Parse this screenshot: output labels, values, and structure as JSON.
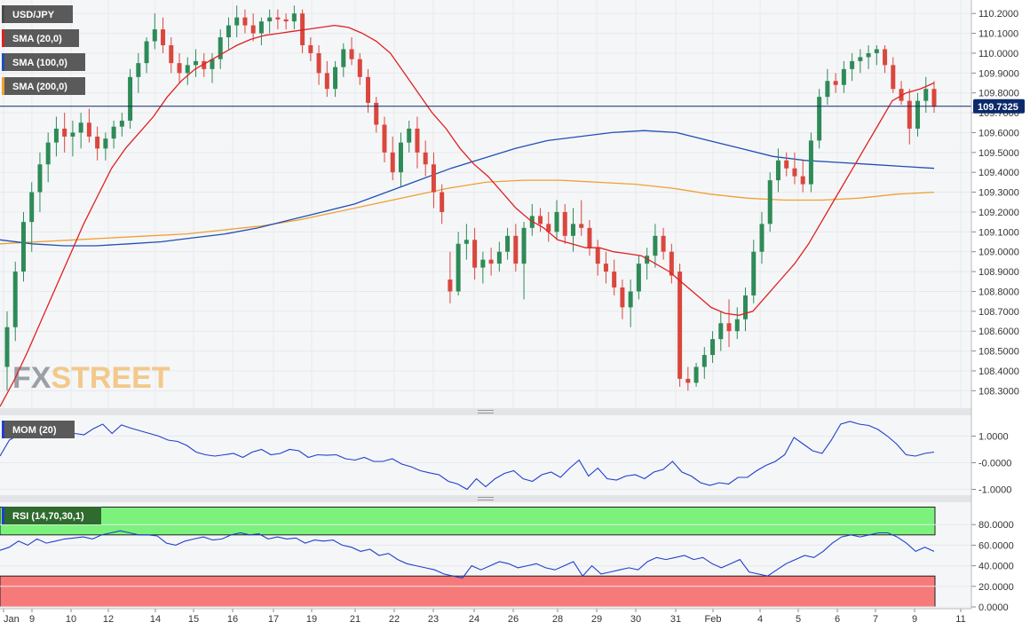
{
  "colors": {
    "up": "#2e8b57",
    "down": "#d9473d",
    "sma20": "#e02020",
    "sma100": "#1f4fb5",
    "sma200": "#f0a030",
    "mom": "#1f3fcc",
    "rsi": "#1f3fcc",
    "rsi_overbought": "#7cf27c",
    "rsi_oversold": "#f77a7a",
    "last_price_badge": "#0d2a6b"
  },
  "watermark": {
    "fx": "FX",
    "street": "STREET"
  },
  "chart_data": [
    {
      "type": "candlestick",
      "symbol": "USD/JPY",
      "legend": [
        "USD/JPY",
        "SMA (20,0)",
        "SMA (100,0)",
        "SMA (200,0)"
      ],
      "last_price": "109.7325",
      "y_ticks": [
        "110.2000",
        "110.1000",
        "110.0000",
        "109.9000",
        "109.8000",
        "109.7000",
        "109.6000",
        "109.5000",
        "109.4000",
        "109.3000",
        "109.2000",
        "109.1000",
        "109.0000",
        "108.9000",
        "108.8000",
        "108.7000",
        "108.6000",
        "108.5000",
        "108.4000",
        "108.3000"
      ],
      "ylim": [
        108.23,
        110.25
      ],
      "x_ticks": [
        "Jan",
        "9",
        "10",
        "12",
        "14",
        "15",
        "16",
        "17",
        "19",
        "21",
        "22",
        "23",
        "24",
        "26",
        "28",
        "29",
        "30",
        "31",
        "Feb",
        "4",
        "5",
        "6",
        "7",
        "9",
        "11"
      ],
      "candles": [
        [
          108.42,
          108.7,
          108.3,
          108.62
        ],
        [
          108.62,
          108.95,
          108.55,
          108.9
        ],
        [
          108.9,
          109.2,
          108.85,
          109.15
        ],
        [
          109.15,
          109.35,
          109.0,
          109.3
        ],
        [
          109.3,
          109.5,
          109.2,
          109.44
        ],
        [
          109.44,
          109.6,
          109.35,
          109.55
        ],
        [
          109.55,
          109.68,
          109.48,
          109.62
        ],
        [
          109.62,
          109.7,
          109.5,
          109.58
        ],
        [
          109.58,
          109.66,
          109.48,
          109.6
        ],
        [
          109.6,
          109.7,
          109.52,
          109.65
        ],
        [
          109.65,
          109.72,
          109.55,
          109.58
        ],
        [
          109.58,
          109.63,
          109.46,
          109.52
        ],
        [
          109.52,
          109.6,
          109.46,
          109.57
        ],
        [
          109.57,
          109.66,
          109.52,
          109.63
        ],
        [
          109.63,
          109.7,
          109.58,
          109.66
        ],
        [
          109.66,
          109.92,
          109.62,
          109.88
        ],
        [
          109.88,
          110.0,
          109.8,
          109.95
        ],
        [
          109.95,
          110.08,
          109.9,
          110.06
        ],
        [
          110.06,
          110.2,
          110.02,
          110.12
        ],
        [
          110.12,
          110.18,
          110.0,
          110.04
        ],
        [
          110.04,
          110.08,
          109.9,
          109.95
        ],
        [
          109.95,
          110.0,
          109.85,
          109.9
        ],
        [
          109.9,
          109.98,
          109.84,
          109.94
        ],
        [
          109.94,
          110.02,
          109.88,
          109.96
        ],
        [
          109.96,
          110.0,
          109.88,
          109.92
        ],
        [
          109.92,
          110.0,
          109.85,
          109.97
        ],
        [
          109.97,
          110.12,
          109.92,
          110.08
        ],
        [
          110.08,
          110.18,
          110.02,
          110.14
        ],
        [
          110.14,
          110.24,
          110.08,
          110.18
        ],
        [
          110.18,
          110.22,
          110.1,
          110.14
        ],
        [
          110.14,
          110.2,
          110.06,
          110.1
        ],
        [
          110.1,
          110.18,
          110.04,
          110.16
        ],
        [
          110.16,
          110.22,
          110.1,
          110.18
        ],
        [
          110.18,
          110.22,
          110.12,
          110.17
        ],
        [
          110.17,
          110.2,
          110.12,
          110.16
        ],
        [
          110.16,
          110.24,
          110.12,
          110.2
        ],
        [
          110.2,
          110.22,
          110.0,
          110.04
        ],
        [
          110.04,
          110.08,
          109.96,
          110.0
        ],
        [
          110.0,
          110.04,
          109.84,
          109.9
        ],
        [
          109.9,
          109.96,
          109.78,
          109.82
        ],
        [
          109.82,
          109.96,
          109.78,
          109.93
        ],
        [
          109.93,
          110.05,
          109.88,
          110.02
        ],
        [
          110.02,
          110.08,
          109.94,
          109.97
        ],
        [
          109.97,
          110.0,
          109.84,
          109.88
        ],
        [
          109.88,
          109.92,
          109.7,
          109.75
        ],
        [
          109.75,
          109.78,
          109.6,
          109.64
        ],
        [
          109.64,
          109.68,
          109.45,
          109.5
        ],
        [
          109.5,
          109.58,
          109.36,
          109.4
        ],
        [
          109.4,
          109.6,
          109.33,
          109.55
        ],
        [
          109.55,
          109.66,
          109.5,
          109.62
        ],
        [
          109.62,
          109.68,
          109.42,
          109.5
        ],
        [
          109.5,
          109.56,
          109.38,
          109.44
        ],
        [
          109.44,
          109.5,
          109.22,
          109.3
        ],
        [
          109.3,
          109.34,
          109.14,
          109.2
        ],
        [
          108.86,
          109.0,
          108.74,
          108.8
        ],
        [
          108.8,
          109.1,
          108.78,
          109.04
        ],
        [
          109.04,
          109.14,
          108.96,
          109.06
        ],
        [
          109.06,
          109.12,
          108.86,
          108.92
        ],
        [
          108.92,
          109.0,
          108.84,
          108.96
        ],
        [
          108.96,
          109.02,
          108.88,
          108.94
        ],
        [
          108.94,
          109.05,
          108.9,
          109.0
        ],
        [
          109.0,
          109.12,
          108.96,
          109.08
        ],
        [
          109.08,
          109.14,
          108.9,
          108.94
        ],
        [
          108.94,
          109.15,
          108.76,
          109.12
        ],
        [
          109.12,
          109.24,
          109.08,
          109.18
        ],
        [
          109.18,
          109.22,
          109.1,
          109.14
        ],
        [
          109.14,
          109.2,
          109.05,
          109.1
        ],
        [
          109.1,
          109.26,
          109.06,
          109.2
        ],
        [
          109.2,
          109.24,
          109.04,
          109.08
        ],
        [
          109.08,
          109.22,
          109.0,
          109.14
        ],
        [
          109.14,
          109.26,
          109.08,
          109.12
        ],
        [
          109.12,
          109.16,
          108.98,
          109.02
        ],
        [
          109.02,
          109.06,
          108.88,
          108.94
        ],
        [
          108.94,
          109.0,
          108.84,
          108.9
        ],
        [
          108.9,
          108.96,
          108.78,
          108.82
        ],
        [
          108.82,
          108.86,
          108.66,
          108.72
        ],
        [
          108.72,
          108.86,
          108.62,
          108.8
        ],
        [
          108.8,
          108.98,
          108.76,
          108.94
        ],
        [
          108.94,
          109.02,
          108.86,
          108.98
        ],
        [
          108.98,
          109.14,
          108.92,
          109.08
        ],
        [
          109.08,
          109.12,
          108.96,
          109.0
        ],
        [
          109.0,
          109.04,
          108.84,
          108.88
        ],
        [
          108.9,
          108.94,
          108.32,
          108.36
        ],
        [
          108.36,
          108.42,
          108.3,
          108.34
        ],
        [
          108.34,
          108.44,
          108.32,
          108.42
        ],
        [
          108.42,
          108.52,
          108.36,
          108.48
        ],
        [
          108.48,
          108.6,
          108.44,
          108.56
        ],
        [
          108.56,
          108.7,
          108.5,
          108.64
        ],
        [
          108.64,
          108.76,
          108.52,
          108.6
        ],
        [
          108.6,
          108.72,
          108.56,
          108.66
        ],
        [
          108.66,
          108.82,
          108.6,
          108.78
        ],
        [
          108.78,
          109.06,
          108.74,
          109.0
        ],
        [
          109.0,
          109.2,
          108.94,
          109.14
        ],
        [
          109.14,
          109.4,
          109.1,
          109.36
        ],
        [
          109.36,
          109.52,
          109.3,
          109.46
        ],
        [
          109.46,
          109.5,
          109.38,
          109.42
        ],
        [
          109.42,
          109.5,
          109.34,
          109.38
        ],
        [
          109.38,
          109.46,
          109.3,
          109.34
        ],
        [
          109.34,
          109.6,
          109.3,
          109.56
        ],
        [
          109.56,
          109.82,
          109.52,
          109.78
        ],
        [
          109.78,
          109.92,
          109.74,
          109.86
        ],
        [
          109.86,
          109.9,
          109.8,
          109.84
        ],
        [
          109.84,
          109.96,
          109.8,
          109.92
        ],
        [
          109.92,
          110.0,
          109.86,
          109.96
        ],
        [
          109.96,
          110.02,
          109.9,
          109.98
        ],
        [
          109.98,
          110.04,
          109.92,
          110.0
        ],
        [
          110.0,
          110.04,
          109.94,
          110.02
        ],
        [
          110.02,
          110.04,
          109.9,
          109.94
        ],
        [
          109.94,
          109.98,
          109.8,
          109.82
        ],
        [
          109.82,
          109.86,
          109.74,
          109.76
        ],
        [
          109.76,
          109.82,
          109.54,
          109.62
        ],
        [
          109.62,
          109.8,
          109.58,
          109.76
        ],
        [
          109.76,
          109.88,
          109.7,
          109.82
        ],
        [
          109.82,
          109.86,
          109.7,
          109.73
        ]
      ],
      "sma20": [
        108.22,
        108.35,
        108.5,
        108.66,
        108.82,
        108.98,
        109.14,
        109.28,
        109.42,
        109.52,
        109.6,
        109.68,
        109.78,
        109.86,
        109.92,
        109.96,
        110.0,
        110.04,
        110.07,
        110.09,
        110.1,
        110.11,
        110.12,
        110.13,
        110.14,
        110.13,
        110.1,
        110.06,
        110.0,
        109.9,
        109.8,
        109.7,
        109.62,
        109.52,
        109.44,
        109.38,
        109.3,
        109.22,
        109.16,
        109.12,
        109.06,
        109.04,
        109.02,
        109.02,
        109.0,
        108.99,
        108.98,
        108.94,
        108.9,
        108.84,
        108.78,
        108.72,
        108.69,
        108.68,
        108.7,
        108.78,
        108.86,
        108.94,
        109.04,
        109.16,
        109.28,
        109.4,
        109.52,
        109.64,
        109.76,
        109.8,
        109.82,
        109.85
      ],
      "sma100": [
        109.06,
        109.04,
        109.03,
        109.03,
        109.04,
        109.05,
        109.07,
        109.09,
        109.12,
        109.16,
        109.2,
        109.24,
        109.3,
        109.36,
        109.42,
        109.47,
        109.52,
        109.56,
        109.58,
        109.6,
        109.61,
        109.6,
        109.56,
        109.52,
        109.48,
        109.46,
        109.45,
        109.44,
        109.43,
        109.42
      ],
      "sma200": [
        109.04,
        109.05,
        109.06,
        109.07,
        109.08,
        109.09,
        109.11,
        109.13,
        109.16,
        109.2,
        109.24,
        109.28,
        109.32,
        109.35,
        109.36,
        109.36,
        109.35,
        109.34,
        109.32,
        109.29,
        109.27,
        109.26,
        109.26,
        109.27,
        109.29,
        109.3
      ]
    },
    {
      "type": "line",
      "legend": "MOM (20)",
      "y_ticks": [
        "1.0000",
        "-0.0000",
        "-1.0000"
      ],
      "ylim": [
        -1.15,
        1.65
      ],
      "values": [
        0.25,
        0.85,
        1.05,
        1.25,
        1.15,
        1.12,
        1.2,
        1.22,
        1.1,
        1.05,
        1.28,
        1.45,
        1.1,
        1.42,
        1.3,
        1.2,
        1.1,
        1.0,
        0.85,
        0.8,
        0.65,
        0.4,
        0.3,
        0.25,
        0.3,
        0.35,
        0.2,
        0.4,
        0.5,
        0.3,
        0.35,
        0.5,
        0.45,
        0.2,
        0.3,
        0.28,
        0.3,
        0.15,
        0.1,
        0.2,
        0.05,
        0.05,
        0.15,
        -0.05,
        -0.15,
        -0.3,
        -0.38,
        -0.45,
        -0.7,
        -0.8,
        -1.0,
        -0.6,
        -0.9,
        -0.6,
        -0.4,
        -0.3,
        -0.6,
        -0.7,
        -0.45,
        -0.35,
        -0.55,
        -0.2,
        0.1,
        -0.5,
        -0.2,
        -0.6,
        -0.65,
        -0.5,
        -0.45,
        -0.6,
        -0.35,
        -0.25,
        0.05,
        -0.35,
        -0.5,
        -0.75,
        -0.85,
        -0.75,
        -0.8,
        -0.55,
        -0.55,
        -0.3,
        -0.1,
        0.05,
        0.3,
        0.95,
        0.7,
        0.45,
        0.35,
        0.85,
        1.45,
        1.55,
        1.45,
        1.4,
        1.25,
        1.0,
        0.7,
        0.3,
        0.25,
        0.35,
        0.4
      ]
    },
    {
      "type": "line",
      "legend": "RSI (14,70,30,1)",
      "y_ticks": [
        "80.0000",
        "60.0000",
        "40.0000",
        "20.0000",
        "0.0000"
      ],
      "ylim": [
        0,
        100
      ],
      "overbought": 70,
      "oversold": 30,
      "values": [
        55,
        58,
        64,
        60,
        66,
        62,
        64,
        66,
        67,
        68,
        66,
        70,
        72,
        74,
        72,
        70,
        70,
        69,
        62,
        60,
        64,
        66,
        68,
        65,
        66,
        70,
        72,
        70,
        71,
        66,
        68,
        66,
        67,
        62,
        65,
        64,
        65,
        60,
        58,
        54,
        56,
        50,
        52,
        46,
        42,
        40,
        38,
        36,
        32,
        30,
        28,
        40,
        36,
        40,
        44,
        42,
        38,
        40,
        42,
        38,
        36,
        40,
        44,
        30,
        40,
        32,
        34,
        36,
        38,
        36,
        44,
        48,
        46,
        48,
        50,
        46,
        48,
        42,
        38,
        42,
        46,
        34,
        32,
        30,
        36,
        42,
        46,
        50,
        48,
        54,
        62,
        68,
        70,
        68,
        70,
        72,
        72,
        68,
        62,
        54,
        58,
        54
      ]
    }
  ]
}
